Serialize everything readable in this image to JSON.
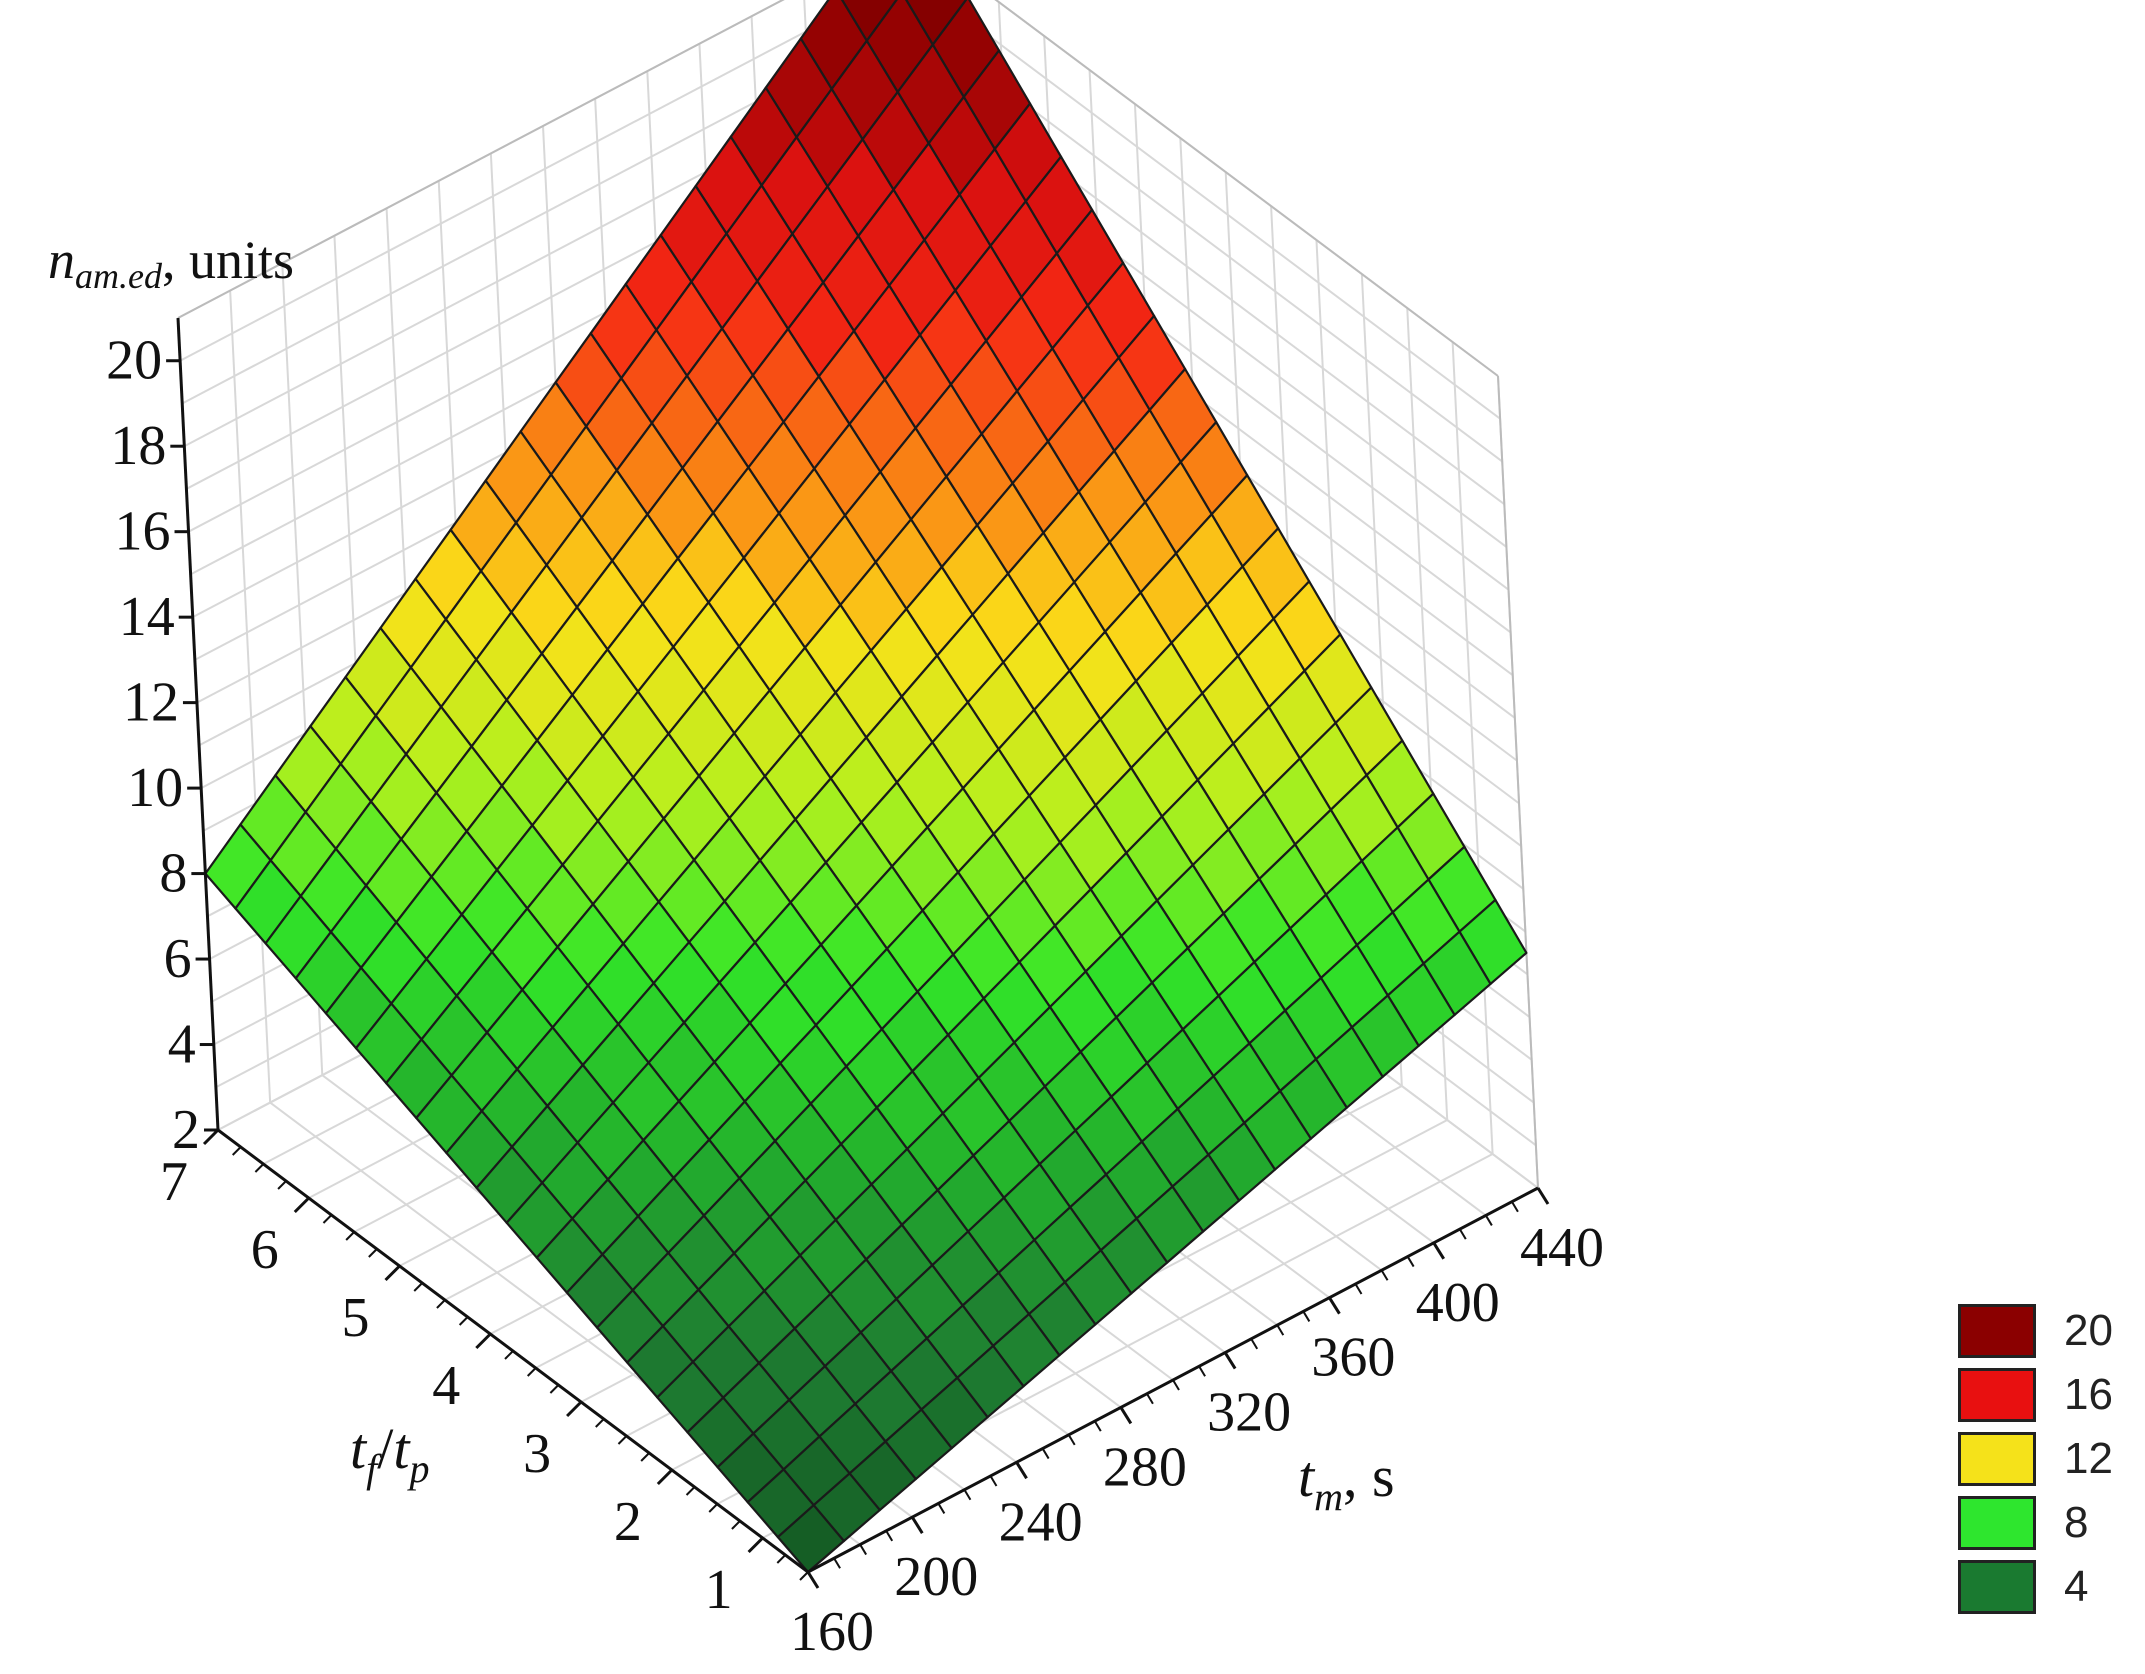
{
  "chart_data": {
    "type": "surface3d",
    "title": "",
    "zlabel": {
      "main": "n",
      "sub": "am.ed",
      "rest": ", units"
    },
    "xlabel": {
      "a": "t",
      "a_sub": "f",
      "slash": "/",
      "b": "t",
      "b_sub": "p"
    },
    "ylabel": {
      "main": "t",
      "sub": "m",
      "rest": ", s"
    },
    "x_ticks": [
      "1",
      "2",
      "3",
      "4",
      "5",
      "6",
      "7"
    ],
    "y_ticks": [
      "160",
      "200",
      "240",
      "280",
      "320",
      "360",
      "400",
      "440"
    ],
    "z_ticks": [
      "2",
      "4",
      "6",
      "8",
      "10",
      "12",
      "14",
      "16",
      "18",
      "20"
    ],
    "x_range": [
      0.5,
      7
    ],
    "y_range": [
      160,
      440
    ],
    "z_range": [
      2,
      21
    ],
    "corners": [
      {
        "tf_tp": 7,
        "tm": 160,
        "n": 8
      },
      {
        "tf_tp": 7,
        "tm": 440,
        "n": 22
      },
      {
        "tf_tp": 0.5,
        "tm": 440,
        "n": 7.5
      },
      {
        "tf_tp": 0.5,
        "tm": 160,
        "n": 2
      }
    ],
    "grid": true,
    "legend_position": "bottom-right",
    "legend": [
      {
        "label": "20",
        "color": "#8b0000"
      },
      {
        "label": "16",
        "color": "#e81010"
      },
      {
        "label": "12",
        "color": "#f5e21a"
      },
      {
        "label": "8",
        "color": "#2ee62e"
      },
      {
        "label": "4",
        "color": "#1a7a30"
      }
    ]
  }
}
